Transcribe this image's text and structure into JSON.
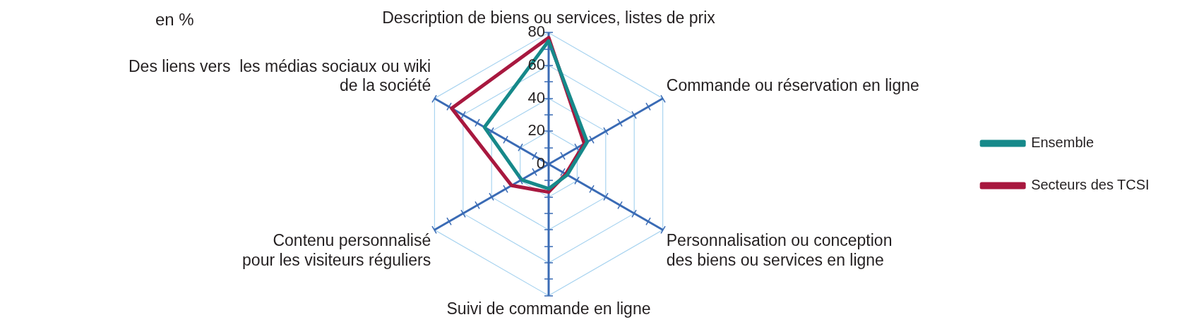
{
  "chart_data": {
    "type": "radar",
    "ylabel": "en %",
    "categories": [
      "Description de biens ou services, listes de prix",
      "Commande ou réservation en ligne",
      "Personnalisation ou conception\ndes biens ou services en ligne",
      "Suivi de commande en ligne",
      "Contenu personnalisé\npour les visiteurs réguliers",
      "Des liens vers  les médias sociaux ou wiki\nde la société"
    ],
    "series": [
      {
        "name": "Ensemble",
        "color": "#16898a",
        "values": [
          75,
          27,
          13,
          15,
          19,
          45
        ]
      },
      {
        "name": "Secteurs des TCSI",
        "color": "#a8183f",
        "values": [
          77,
          25,
          12,
          17,
          26,
          68
        ]
      }
    ],
    "ylim": [
      0,
      80
    ],
    "yticks": [
      0,
      20,
      40,
      60,
      80
    ],
    "grid": true,
    "legend": "right",
    "marker": "none",
    "line_style": "solid"
  }
}
